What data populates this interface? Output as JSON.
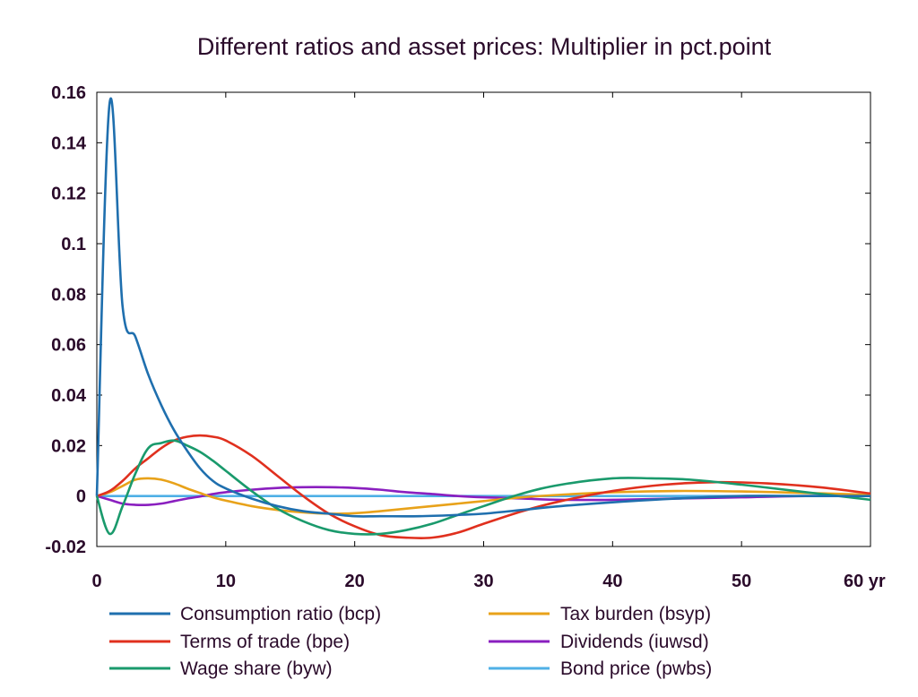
{
  "chart_data": {
    "type": "line",
    "title": "Different ratios and asset prices: Multiplier in pct.point",
    "xlim": [
      0,
      60
    ],
    "ylim": [
      -0.02,
      0.16
    ],
    "x_ticks": [
      0,
      10,
      20,
      30,
      40,
      50,
      60
    ],
    "x_tick_labels": [
      "0",
      "10",
      "20",
      "30",
      "40",
      "50",
      "60 yr"
    ],
    "y_ticks": [
      -0.02,
      0,
      0.02,
      0.04,
      0.06,
      0.08,
      0.1,
      0.12,
      0.14,
      0.16
    ],
    "y_tick_labels": [
      "-0.02",
      "0",
      "0.02",
      "0.04",
      "0.06",
      "0.08",
      "0.1",
      "0.12",
      "0.14",
      "0.16"
    ],
    "grid": false,
    "legend_position": "bottom",
    "series": [
      {
        "name": "Consumption ratio (bcp)",
        "color": "#1f6fae",
        "x": [
          0,
          1,
          2,
          3,
          4,
          5,
          6,
          7,
          8,
          9,
          10,
          12,
          14,
          16,
          18,
          20,
          22,
          25,
          28,
          30,
          33,
          36,
          40,
          45,
          50,
          55,
          60
        ],
        "y": [
          0,
          0.156,
          0.075,
          0.063,
          0.048,
          0.036,
          0.026,
          0.018,
          0.011,
          0.006,
          0.003,
          -0.001,
          -0.004,
          -0.006,
          -0.007,
          -0.008,
          -0.008,
          -0.008,
          -0.0075,
          -0.007,
          -0.0055,
          -0.004,
          -0.0025,
          -0.001,
          0,
          0,
          0
        ]
      },
      {
        "name": "Terms of trade (bpe)",
        "color": "#e0301e",
        "x": [
          0,
          1,
          2,
          3,
          4,
          5,
          6,
          7,
          8,
          9,
          10,
          12,
          14,
          16,
          18,
          20,
          22,
          24,
          26,
          28,
          30,
          33,
          36,
          40,
          44,
          48,
          52,
          56,
          60
        ],
        "y": [
          0,
          0.002,
          0.006,
          0.011,
          0.015,
          0.019,
          0.022,
          0.0235,
          0.024,
          0.0235,
          0.022,
          0.016,
          0.008,
          0,
          -0.007,
          -0.012,
          -0.0155,
          -0.0165,
          -0.0165,
          -0.0145,
          -0.011,
          -0.006,
          -0.002,
          0.002,
          0.0045,
          0.0055,
          0.005,
          0.0035,
          0.001
        ]
      },
      {
        "name": "Wage share (byw)",
        "color": "#1a9a6c",
        "x": [
          0,
          1,
          2,
          3,
          4,
          5,
          6,
          7,
          8,
          9,
          10,
          12,
          14,
          16,
          18,
          20,
          22,
          24,
          26,
          28,
          30,
          33,
          36,
          40,
          43,
          46,
          50,
          55,
          60
        ],
        "y": [
          0,
          -0.015,
          -0.004,
          0.009,
          0.019,
          0.021,
          0.022,
          0.02,
          0.0175,
          0.014,
          0.01,
          0.002,
          -0.005,
          -0.01,
          -0.0135,
          -0.015,
          -0.015,
          -0.0135,
          -0.011,
          -0.0075,
          -0.004,
          0.001,
          0.0045,
          0.007,
          0.007,
          0.0065,
          0.0045,
          0.0015,
          -0.0015
        ]
      },
      {
        "name": "Tax burden (bsyp)",
        "color": "#e8a21a",
        "x": [
          0,
          1,
          2,
          3,
          4,
          5,
          6,
          7,
          8,
          9,
          10,
          12,
          14,
          16,
          18,
          20,
          22,
          25,
          28,
          30,
          33,
          36,
          40,
          45,
          50,
          55,
          60
        ],
        "y": [
          0,
          0.0015,
          0.004,
          0.0065,
          0.007,
          0.0065,
          0.005,
          0.003,
          0.0012,
          -0.0005,
          -0.0018,
          -0.004,
          -0.0055,
          -0.0065,
          -0.007,
          -0.0068,
          -0.006,
          -0.0045,
          -0.003,
          -0.002,
          -0.0005,
          0.0005,
          0.0015,
          0.002,
          0.0018,
          0.0012,
          0.0005
        ]
      },
      {
        "name": "Dividends (iuwsd)",
        "color": "#8a1fbf",
        "x": [
          0,
          1,
          2,
          3,
          4,
          5,
          6,
          7,
          8,
          9,
          10,
          12,
          14,
          16,
          18,
          20,
          22,
          24,
          26,
          28,
          30,
          33,
          36,
          40,
          45,
          50,
          55,
          60
        ],
        "y": [
          0,
          -0.0015,
          -0.003,
          -0.0035,
          -0.0035,
          -0.003,
          -0.002,
          -0.001,
          -0.0002,
          0.0008,
          0.0015,
          0.0025,
          0.0032,
          0.0035,
          0.0035,
          0.0032,
          0.0025,
          0.0015,
          0.0008,
          0,
          -0.0005,
          -0.001,
          -0.0015,
          -0.0015,
          -0.001,
          -0.0005,
          0,
          0
        ]
      },
      {
        "name": "Bond price (pwbs)",
        "color": "#4fb0e6",
        "x": [
          0,
          60
        ],
        "y": [
          0,
          0
        ]
      }
    ]
  }
}
